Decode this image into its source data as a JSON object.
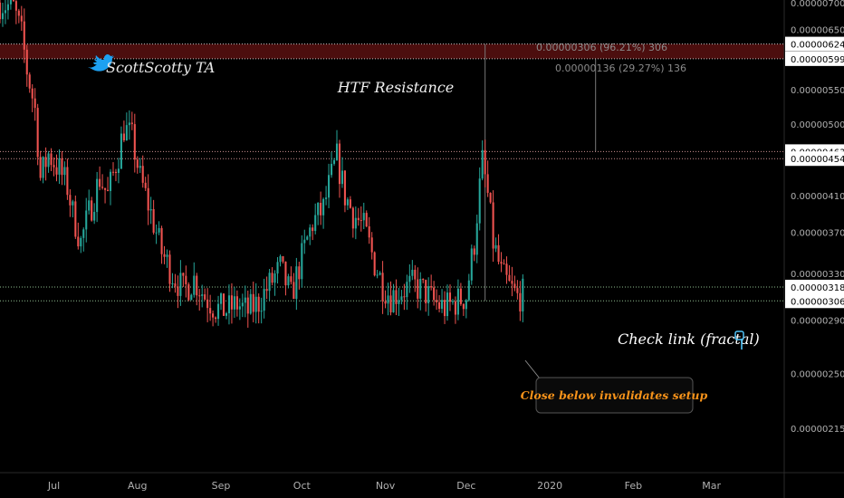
{
  "watermark": {
    "label": "ScottScotty TA",
    "icon": "twitter-bird-icon",
    "color": "#1da1f2"
  },
  "annotations": {
    "htf_resistance": "HTF Resistance",
    "check_link": "Check link (fractal)",
    "check_link_icon": "pointing-hand-down-icon",
    "invalidation": "Close below invalidates setup"
  },
  "measures": [
    {
      "label": "0.00000306 (96.21%) 306",
      "from": "2019-12-08",
      "to": 6.24e-06
    },
    {
      "label": "0.00000136 (29.27%) 136",
      "from": "2020-01-18",
      "to": 5.99e-06
    }
  ],
  "colors": {
    "up": "#26a69a",
    "down": "#ef5350",
    "resistance_zone": "#8b1a1a",
    "label_text": "#f7931a",
    "background": "#000000"
  },
  "chart_data": {
    "type": "candlestick",
    "title": "",
    "x_ticks": [
      "Jul",
      "Aug",
      "Sep",
      "Oct",
      "Nov",
      "Dec",
      "2020",
      "Feb",
      "Mar"
    ],
    "x_range": [
      "2019-06-11",
      "2020-03-28"
    ],
    "y_ticks": [
      "0.00000700",
      "0.00000650",
      "0.00000550",
      "0.00000500",
      "0.00000410",
      "0.00000370",
      "0.00000330",
      "0.00000290",
      "0.00000250",
      "0.00000215"
    ],
    "y_range": [
      1.9e-06,
      7.05e-06
    ],
    "y_scale": "log",
    "price_labels": [
      "0.00000624",
      "0.00000599",
      "0.00000463",
      "0.00000454",
      "0.00000318",
      "0.00000306"
    ],
    "levels": [
      {
        "name": "htf-resistance-top",
        "value": 6.24e-06
      },
      {
        "name": "htf-resistance-bottom",
        "value": 5.99e-06
      },
      {
        "name": "resistance-high",
        "value": 4.63e-06
      },
      {
        "name": "resistance-low",
        "value": 4.54e-06
      },
      {
        "name": "support-high",
        "value": 3.18e-06
      },
      {
        "name": "support-low",
        "value": 3.06e-06
      }
    ],
    "zones": [
      {
        "name": "htf-resistance",
        "from": 5.99e-06,
        "to": 6.24e-06
      }
    ],
    "price_path": [
      [
        "2019-06-11",
        7e-06
      ],
      [
        "2019-06-16",
        6.9e-06
      ],
      [
        "2019-06-19",
        6.4e-06
      ],
      [
        "2019-06-21",
        5.8e-06
      ],
      [
        "2019-06-24",
        5.2e-06
      ],
      [
        "2019-06-26",
        4.3e-06
      ],
      [
        "2019-06-29",
        4.6e-06
      ],
      [
        "2019-07-03",
        4.4e-06
      ],
      [
        "2019-07-06",
        4.2e-06
      ],
      [
        "2019-07-08",
        3.9e-06
      ],
      [
        "2019-07-11",
        3.6e-06
      ],
      [
        "2019-07-14",
        3.9e-06
      ],
      [
        "2019-07-18",
        4.3e-06
      ],
      [
        "2019-07-21",
        4.1e-06
      ],
      [
        "2019-07-25",
        4.6e-06
      ],
      [
        "2019-07-27",
        4.95e-06
      ],
      [
        "2019-07-30",
        4.8e-06
      ],
      [
        "2019-08-02",
        4.3e-06
      ],
      [
        "2019-08-06",
        3.9e-06
      ],
      [
        "2019-08-10",
        3.5e-06
      ],
      [
        "2019-08-14",
        3.3e-06
      ],
      [
        "2019-08-18",
        3.15e-06
      ],
      [
        "2019-08-22",
        3.25e-06
      ],
      [
        "2019-08-26",
        3.1e-06
      ],
      [
        "2019-08-30",
        3e-06
      ],
      [
        "2019-09-03",
        2.98e-06
      ],
      [
        "2019-09-07",
        3.03e-06
      ],
      [
        "2019-09-11",
        2.97e-06
      ],
      [
        "2019-09-15",
        3.05e-06
      ],
      [
        "2019-09-19",
        3.2e-06
      ],
      [
        "2019-09-23",
        3.35e-06
      ],
      [
        "2019-09-27",
        3.1e-06
      ],
      [
        "2019-10-01",
        3.45e-06
      ],
      [
        "2019-10-05",
        3.8e-06
      ],
      [
        "2019-10-09",
        3.95e-06
      ],
      [
        "2019-10-11",
        4.2e-06
      ],
      [
        "2019-10-14",
        4.55e-06
      ],
      [
        "2019-10-17",
        4.1e-06
      ],
      [
        "2019-10-20",
        3.9e-06
      ],
      [
        "2019-10-24",
        3.75e-06
      ],
      [
        "2019-10-28",
        3.4e-06
      ],
      [
        "2019-10-31",
        3.2e-06
      ],
      [
        "2019-11-03",
        3.1e-06
      ],
      [
        "2019-11-07",
        3.15e-06
      ],
      [
        "2019-11-11",
        3.2e-06
      ],
      [
        "2019-11-15",
        3.15e-06
      ],
      [
        "2019-11-19",
        3.05e-06
      ],
      [
        "2019-11-23",
        3e-06
      ],
      [
        "2019-11-27",
        3.05e-06
      ],
      [
        "2019-12-01",
        3.1e-06
      ],
      [
        "2019-12-04",
        3.6e-06
      ],
      [
        "2019-12-07",
        4.5e-06
      ],
      [
        "2019-12-09",
        4.1e-06
      ],
      [
        "2019-12-11",
        3.6e-06
      ],
      [
        "2019-12-14",
        3.3e-06
      ],
      [
        "2019-12-17",
        3.18e-06
      ],
      [
        "2019-12-20",
        3.09e-06
      ],
      [
        "2019-12-22",
        3.12e-06
      ]
    ]
  }
}
